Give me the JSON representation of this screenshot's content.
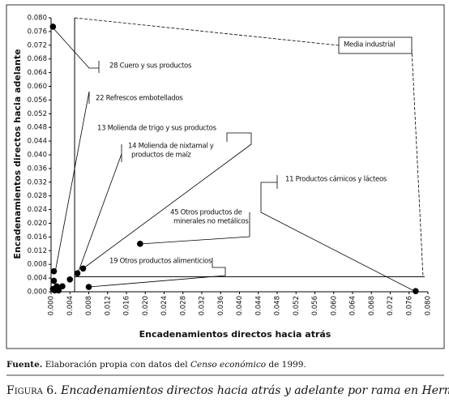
{
  "chart_data": {
    "type": "scatter",
    "x_label": "Encadenamientos directos hacia atrás",
    "y_label": "Encadenamientos directos hacia adelante",
    "x": [
      0.0004,
      0.0006,
      0.0006,
      0.0004,
      0.0008,
      0.0012,
      0.0016,
      0.0024,
      0.004,
      0.0056,
      0.0068,
      0.008,
      0.0189,
      0.0774
    ],
    "values": [
      0.0774,
      0.006,
      0.0032,
      0.0008,
      0.0004,
      0.0016,
      0.0004,
      0.0016,
      0.0036,
      0.0054,
      0.0068,
      0.0014,
      0.014,
      0.0002
    ],
    "color": "#000000",
    "xlim": [
      0,
      0.08
    ],
    "ylim": [
      0,
      0.08
    ],
    "xticks": [
      {
        "value": 0,
        "label": "0.000"
      },
      {
        "value": 0.004,
        "label": "0.004"
      },
      {
        "value": 0.008,
        "label": "0.008"
      },
      {
        "value": 0.012,
        "label": "0.012"
      },
      {
        "value": 0.016,
        "label": "0.016"
      },
      {
        "value": 0.02,
        "label": "0.020"
      },
      {
        "value": 0.024,
        "label": "0.024"
      },
      {
        "value": 0.028,
        "label": "0.028"
      },
      {
        "value": 0.032,
        "label": "0.032"
      },
      {
        "value": 0.036,
        "label": "0.036"
      },
      {
        "value": 0.04,
        "label": "0.040"
      },
      {
        "value": 0.044,
        "label": "0.044"
      },
      {
        "value": 0.048,
        "label": "0.048"
      },
      {
        "value": 0.052,
        "label": "0.052"
      },
      {
        "value": 0.056,
        "label": "0.056"
      },
      {
        "value": 0.06,
        "label": "0.060"
      },
      {
        "value": 0.064,
        "label": "0.064"
      },
      {
        "value": 0.068,
        "label": "0.068"
      },
      {
        "value": 0.072,
        "label": "0.072"
      },
      {
        "value": 0.076,
        "label": "0.076"
      },
      {
        "value": 0.08,
        "label": "0.080"
      }
    ],
    "yticks": [
      {
        "value": 0,
        "label": "0.000"
      },
      {
        "value": 0.004,
        "label": "0.004"
      },
      {
        "value": 0.008,
        "label": "0.008"
      },
      {
        "value": 0.012,
        "label": "0.012"
      },
      {
        "value": 0.016,
        "label": "0.016"
      },
      {
        "value": 0.02,
        "label": "0.020"
      },
      {
        "value": 0.024,
        "label": "0.024"
      },
      {
        "value": 0.028,
        "label": "0.028"
      },
      {
        "value": 0.032,
        "label": "0.032"
      },
      {
        "value": 0.036,
        "label": "0.036"
      },
      {
        "value": 0.04,
        "label": "0.040"
      },
      {
        "value": 0.044,
        "label": "0.044"
      },
      {
        "value": 0.048,
        "label": "0.048"
      },
      {
        "value": 0.052,
        "label": "0.052"
      },
      {
        "value": 0.056,
        "label": "0.056"
      },
      {
        "value": 0.06,
        "label": "0.060"
      },
      {
        "value": 0.064,
        "label": "0.064"
      },
      {
        "value": 0.068,
        "label": "0.068"
      },
      {
        "value": 0.072,
        "label": "0.072"
      },
      {
        "value": 0.076,
        "label": "0.076"
      },
      {
        "value": 0.08,
        "label": "0.080"
      }
    ],
    "mean_label": "Media industrial",
    "x_mean": 0.005,
    "y_mean": 0.0044,
    "annotations": [
      [
        "28 Cuero y sus productos"
      ],
      [
        "22 Refrescos embotellados"
      ],
      [
        "13 Molienda de trigo y sus productos"
      ],
      [
        "14 Molienda de nixtamal y",
        "productos de maíz"
      ],
      [
        "11 Productos cárnicos y lácteos"
      ],
      [
        "45 Otros productos de",
        "minerales no metálicos"
      ],
      [
        "19 Otros productos alimenticios"
      ]
    ]
  },
  "source": {
    "label": "Fuente.",
    "text_before": "Elaboración propia con datos del",
    "italic": "Censo económico",
    "text_after": "de 1999."
  },
  "caption": {
    "label": "Figura 6.",
    "text": "Encadenamientos directos hacia atrás y adelante por rama en Hermosillo"
  }
}
